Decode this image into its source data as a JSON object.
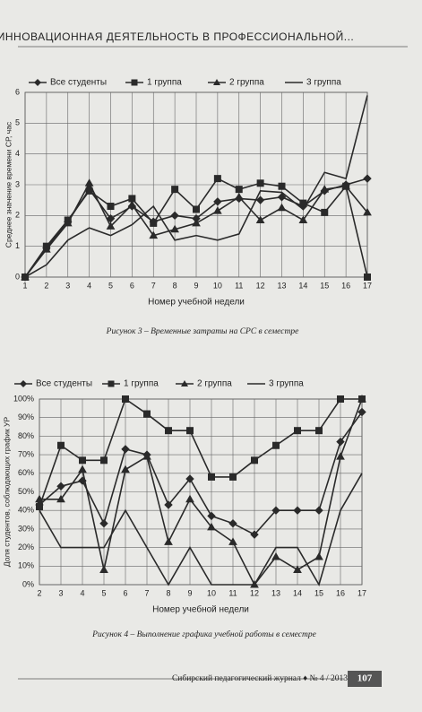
{
  "header": {
    "title": "ИННОВАЦИОННАЯ ДЕЯТЕЛЬНОСТЬ В ПРОФЕССИОНАЛЬНОЙ..."
  },
  "chart_data": [
    {
      "type": "line",
      "xlabel": "Номер учебной недели",
      "ylabel": "Среднее значение времени СР, час",
      "x": [
        1,
        2,
        3,
        4,
        5,
        6,
        7,
        8,
        9,
        10,
        11,
        12,
        13,
        14,
        15,
        16,
        17
      ],
      "xlim": [
        1,
        17
      ],
      "xticks": [
        1,
        2,
        3,
        4,
        5,
        6,
        7,
        8,
        9,
        10,
        11,
        12,
        13,
        14,
        15,
        16,
        17
      ],
      "ylim": [
        0,
        6
      ],
      "yticks": [
        0,
        1,
        2,
        3,
        4,
        5,
        6
      ],
      "grid": true,
      "series": [
        {
          "name": "Все студенты",
          "color": "#2a2a2a",
          "marker": "diamond",
          "values": [
            0,
            0.95,
            1.8,
            2.85,
            1.9,
            2.3,
            1.8,
            2.0,
            1.9,
            2.45,
            2.55,
            2.5,
            2.6,
            2.3,
            2.8,
            3.0,
            3.2
          ]
        },
        {
          "name": "1 группа",
          "color": "#2a2a2a",
          "marker": "square",
          "values": [
            0,
            1.0,
            1.85,
            2.8,
            2.3,
            2.55,
            1.75,
            2.85,
            2.2,
            3.2,
            2.85,
            3.05,
            2.95,
            2.4,
            2.1,
            2.95,
            0
          ]
        },
        {
          "name": "2 группа",
          "color": "#2a2a2a",
          "marker": "triangle",
          "values": [
            0,
            0.9,
            1.75,
            3.05,
            1.65,
            2.35,
            1.35,
            1.55,
            1.75,
            2.15,
            2.6,
            1.85,
            2.25,
            1.85,
            2.85,
            2.95,
            2.1
          ]
        },
        {
          "name": "3 группа",
          "color": "#2a2a2a",
          "marker": "none",
          "values": [
            0,
            0.4,
            1.2,
            1.6,
            1.35,
            1.7,
            2.3,
            1.2,
            1.35,
            1.2,
            1.4,
            2.8,
            2.75,
            2.2,
            3.4,
            3.2,
            5.9
          ]
        }
      ]
    },
    {
      "type": "line",
      "xlabel": "Номер учебной недели",
      "ylabel": "Доля студентов, соблюдающих график УР",
      "x": [
        2,
        3,
        4,
        5,
        6,
        7,
        8,
        9,
        10,
        11,
        12,
        13,
        14,
        15,
        16,
        17
      ],
      "xlim": [
        2,
        17
      ],
      "xticks": [
        2,
        3,
        4,
        5,
        6,
        7,
        8,
        9,
        10,
        11,
        12,
        13,
        14,
        15,
        16,
        17
      ],
      "ylim": [
        0,
        100
      ],
      "yticks": [
        {
          "value": 0,
          "label": "0%"
        },
        {
          "value": 10,
          "label": "10%"
        },
        {
          "value": 20,
          "label": "20%"
        },
        {
          "value": 30,
          "label": "30%"
        },
        {
          "value": 40,
          "label": "40%"
        },
        {
          "value": 50,
          "label": "50%"
        },
        {
          "value": 60,
          "label": "60%"
        },
        {
          "value": 70,
          "label": "70%"
        },
        {
          "value": 80,
          "label": "80%"
        },
        {
          "value": 90,
          "label": "90%"
        },
        {
          "value": 100,
          "label": "100%"
        }
      ],
      "grid": true,
      "series": [
        {
          "name": "Все студенты",
          "color": "#2a2a2a",
          "marker": "diamond",
          "values": [
            43,
            53,
            56,
            33,
            73,
            70,
            43,
            57,
            37,
            33,
            27,
            40,
            40,
            40,
            77,
            93
          ]
        },
        {
          "name": "1 группа",
          "color": "#2a2a2a",
          "marker": "square",
          "values": [
            42,
            75,
            67,
            67,
            100,
            92,
            83,
            83,
            58,
            58,
            67,
            75,
            83,
            83,
            100,
            100
          ]
        },
        {
          "name": "2 группа",
          "color": "#2a2a2a",
          "marker": "triangle",
          "values": [
            46,
            46,
            62,
            8,
            62,
            69,
            23,
            46,
            31,
            23,
            0,
            15,
            8,
            15,
            69,
            100
          ]
        },
        {
          "name": "3 группа",
          "color": "#2a2a2a",
          "marker": "none",
          "values": [
            40,
            20,
            20,
            20,
            40,
            20,
            0,
            20,
            0,
            0,
            0,
            20,
            20,
            0,
            40,
            60
          ]
        }
      ]
    }
  ],
  "captions": [
    "Рисунок 3 – Временные затраты на СРС в семестре",
    "Рисунок 4 – Выполнение графика учебной работы в семестре"
  ],
  "footer": {
    "journal": "Сибирский педагогический журнал ♦ № 4 / 2013",
    "page": "107"
  }
}
